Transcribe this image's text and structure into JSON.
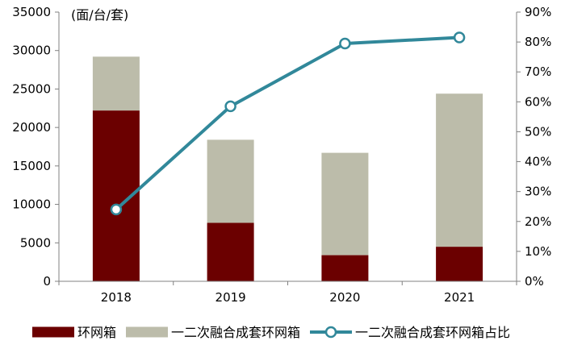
{
  "chart_data": {
    "type": "bar",
    "stacked": true,
    "unit_label": "(面/台/套)",
    "categories": [
      "2018",
      "2019",
      "2020",
      "2021"
    ],
    "series": [
      {
        "name": "环网箱",
        "type": "bar",
        "axis": "left",
        "color": "#6b0000",
        "values": [
          22200,
          7600,
          3400,
          4500
        ]
      },
      {
        "name": "一二次融合成套环网箱",
        "type": "bar",
        "axis": "left",
        "color": "#bcbcaa",
        "values": [
          7000,
          10800,
          13300,
          19900
        ]
      },
      {
        "name": "一二次融合成套环网箱占比",
        "type": "line",
        "axis": "right",
        "color": "#31889a",
        "values": [
          24,
          58.5,
          79.5,
          81.5
        ]
      }
    ],
    "y_left": {
      "min": 0,
      "max": 35000,
      "step": 5000,
      "ticks": [
        "0",
        "5000",
        "10000",
        "15000",
        "20000",
        "25000",
        "30000",
        "35000"
      ]
    },
    "y_right": {
      "min": 0,
      "max": 90,
      "step": 10,
      "ticks": [
        "0%",
        "10%",
        "20%",
        "30%",
        "40%",
        "50%",
        "60%",
        "70%",
        "80%",
        "90%"
      ]
    },
    "legend_position": "bottom",
    "grid": false
  }
}
